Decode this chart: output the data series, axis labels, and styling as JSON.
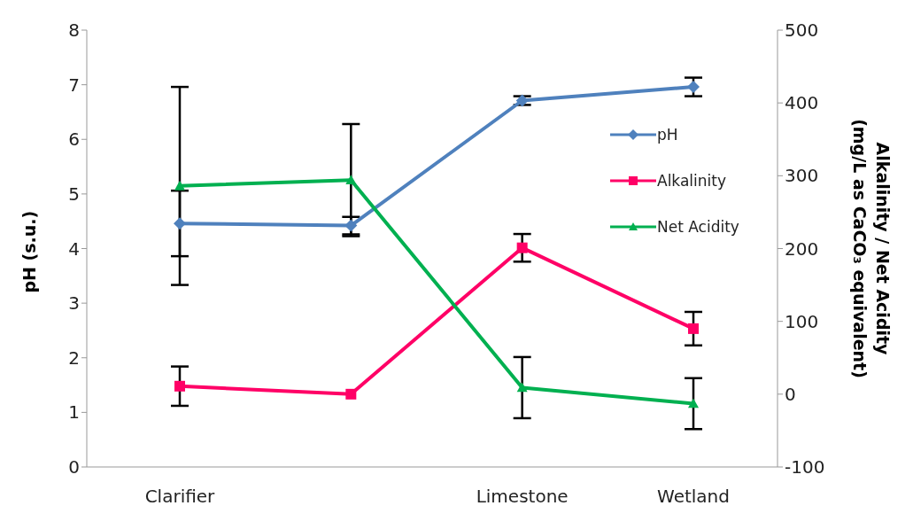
{
  "chart_data": {
    "type": "line",
    "ylabel": "pH (s.u.)",
    "y2label": "Alkalinity / Net Acidity (mg/L as CaCO₃ equivalent)",
    "categories": [
      "Clarifier",
      null,
      "Limestone",
      "Wetland"
    ],
    "ylim": [
      0,
      8
    ],
    "yticks": [
      0,
      1,
      2,
      3,
      4,
      5,
      6,
      7,
      8
    ],
    "y2lim": [
      -100,
      500
    ],
    "y2ticks": [
      -100,
      0,
      100,
      200,
      300,
      400,
      500
    ],
    "grid": false,
    "legend": "right",
    "series": [
      {
        "name": "pH",
        "color": "#4f81bd",
        "marker": "diamond",
        "values": [
          4.46,
          4.42,
          6.71,
          6.96
        ],
        "errors": [
          0.6,
          0.16,
          0.08,
          0.17
        ]
      },
      {
        "name": "Alkalinity",
        "color": "#ff0066",
        "marker": "square",
        "axis": "y2",
        "values": [
          11,
          0,
          201,
          90
        ],
        "errors": [
          27,
          null,
          19,
          23
        ]
      },
      {
        "name": "Net Acidity",
        "color": "#00b050",
        "marker": "triangle",
        "axis": "y2",
        "values": [
          286,
          294,
          9,
          -13
        ],
        "errors": [
          136,
          77,
          42,
          35
        ]
      }
    ]
  }
}
